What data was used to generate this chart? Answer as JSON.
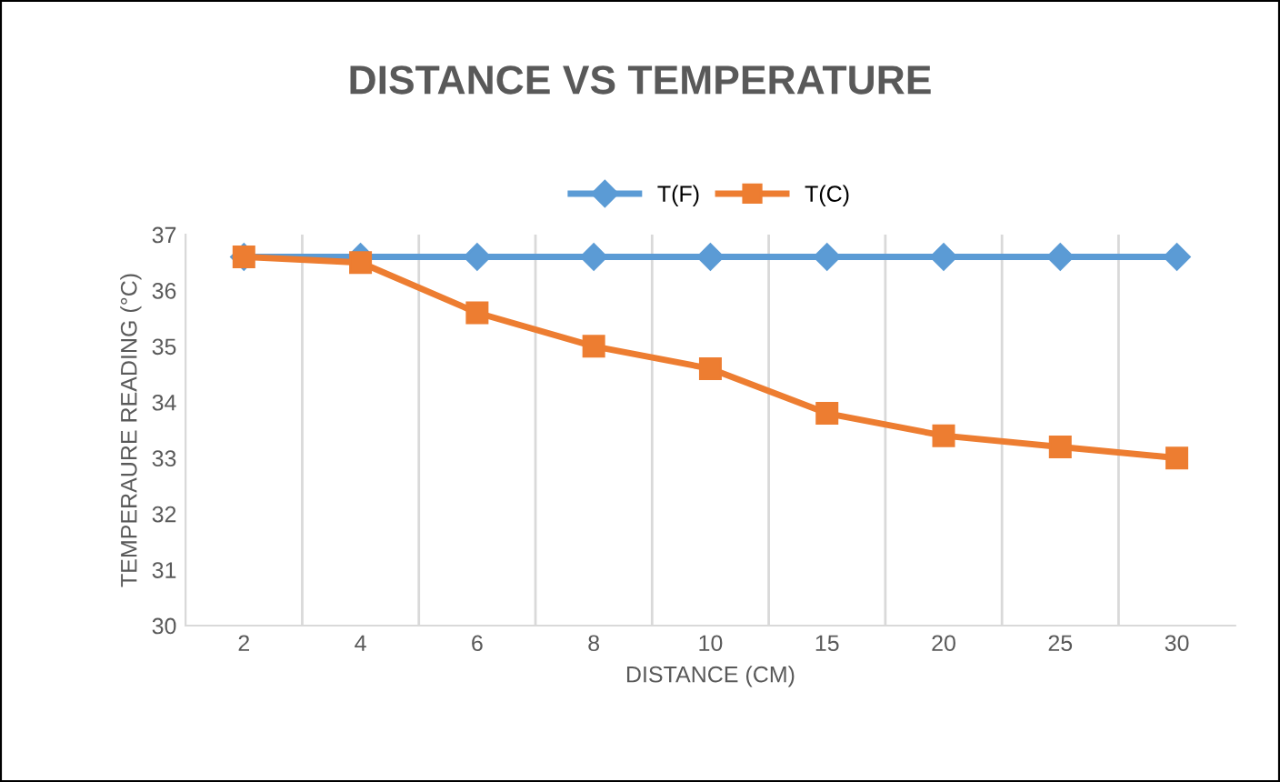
{
  "chart_data": {
    "type": "line",
    "title": "DISTANCE VS TEMPERATURE",
    "xlabel": "DISTANCE (CM)",
    "ylabel": "TEMPERAURE READING (°C)",
    "categories": [
      "2",
      "4",
      "6",
      "8",
      "10",
      "15",
      "20",
      "25",
      "30"
    ],
    "series": [
      {
        "name": "T(F)",
        "color": "#5b9bd5",
        "marker": "diamond",
        "values": [
          36.6,
          36.6,
          36.6,
          36.6,
          36.6,
          36.6,
          36.6,
          36.6,
          36.6
        ]
      },
      {
        "name": "T(C)",
        "color": "#ed7d31",
        "marker": "square",
        "values": [
          36.6,
          36.5,
          35.6,
          35.0,
          34.6,
          33.8,
          33.4,
          33.2,
          33.0
        ]
      }
    ],
    "ylim": [
      30,
      37
    ],
    "yticks": [
      30,
      31,
      32,
      33,
      34,
      35,
      36,
      37
    ],
    "grid": "x",
    "legend": "top",
    "line_style": "solid"
  }
}
